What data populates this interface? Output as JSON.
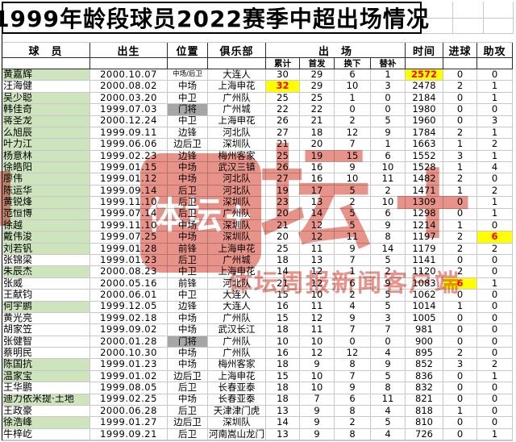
{
  "title": "1999年龄段球员2022赛季中超出场情况",
  "header": {
    "player": "球　员",
    "born": "出生",
    "pos": "位置",
    "club": "俱乐部",
    "appearances": "出　场",
    "time": "时间",
    "goals": "进球",
    "assists": "助攻"
  },
  "subheader": {
    "total": "累计",
    "start": "首发",
    "subbed_off": "换下",
    "sub_on": "替补"
  },
  "colors": {
    "green_row": "#cde4bc",
    "keeper_gray": "#a6a6a6",
    "highlight_yellow": "#ffff00",
    "highlight_red": "#ff0000",
    "watermark_pink": "#e8938a",
    "chip_green": "#45a049"
  },
  "watermark": {
    "icon_text": "体坛+",
    "big_text": "坛+",
    "sub_text": "体坛周报新闻客户端"
  },
  "players": [
    {
      "name": "黄嘉辉",
      "born": "2000.10.07",
      "pos": "中场/后卫",
      "club": "大连人",
      "apps": "30",
      "starts": "29",
      "sub_off": "6",
      "sub_on": "1",
      "minutes": "2572",
      "goals": "0",
      "assists": "0",
      "green": true,
      "keeper": false,
      "hl": "minutes"
    },
    {
      "name": "汪海健",
      "born": "2000.08.02",
      "pos": "中场",
      "club": "上海申花",
      "apps": "32",
      "starts": "29",
      "sub_off": "10",
      "sub_on": "3",
      "minutes": "2478",
      "goals": "2",
      "assists": "1",
      "green": false,
      "keeper": false,
      "hl": "apps"
    },
    {
      "name": "吴少聪",
      "born": "2000.03.20",
      "pos": "中卫",
      "club": "广州队",
      "apps": "25",
      "starts": "25",
      "sub_off": "1",
      "sub_on": "0",
      "minutes": "2184",
      "goals": "0",
      "assists": "1",
      "green": true,
      "keeper": false,
      "hl": null
    },
    {
      "name": "韩佳奇",
      "born": "1999.07.03",
      "pos": "门将",
      "club": "广州城",
      "apps": "22",
      "starts": "22",
      "sub_off": "0",
      "sub_on": "0",
      "minutes": "1980",
      "goals": "0",
      "assists": "0",
      "green": true,
      "keeper": true,
      "hl": null
    },
    {
      "name": "蒋圣龙",
      "born": "2000.12.24",
      "pos": "中卫",
      "club": "上海申花",
      "apps": "26",
      "starts": "21",
      "sub_off": "2",
      "sub_on": "5",
      "minutes": "1960",
      "goals": "0",
      "assists": "3",
      "green": true,
      "keeper": false,
      "hl": null
    },
    {
      "name": "么旭辰",
      "born": "1999.09.11",
      "pos": "边锋",
      "club": "河北队",
      "apps": "27",
      "starts": "18",
      "sub_off": "12",
      "sub_on": "9",
      "minutes": "1784",
      "goals": "2",
      "assists": "1",
      "green": true,
      "keeper": false,
      "hl": null
    },
    {
      "name": "叶力江",
      "born": "1999.06.06",
      "pos": "边后卫",
      "club": "深圳队",
      "apps": "21",
      "starts": "20",
      "sub_off": "7",
      "sub_on": "1",
      "minutes": "1663",
      "goals": "1",
      "assists": "2",
      "green": true,
      "keeper": false,
      "hl": null
    },
    {
      "name": "杨意林",
      "born": "1999.02.23",
      "pos": "边锋",
      "club": "梅州客家",
      "apps": "25",
      "starts": "19",
      "sub_off": "15",
      "sub_on": "6",
      "minutes": "1552",
      "goals": "3",
      "assists": "1",
      "green": true,
      "keeper": false,
      "hl": null
    },
    {
      "name": "徐皓阳",
      "born": "1999.01.15",
      "pos": "中场",
      "club": "武汉三镇",
      "apps": "26",
      "starts": "16",
      "sub_off": "9",
      "sub_on": "10",
      "minutes": "1528",
      "goals": "1",
      "assists": "4",
      "green": true,
      "keeper": false,
      "hl": null
    },
    {
      "name": "廖伟",
      "born": "1999.01.12",
      "pos": "中场",
      "club": "河北队",
      "apps": "27",
      "starts": "16",
      "sub_off": "10",
      "sub_on": "11",
      "minutes": "1482",
      "goals": "2",
      "assists": "0",
      "green": true,
      "keeper": false,
      "hl": null
    },
    {
      "name": "陈运华",
      "born": "1999.09.14",
      "pos": "后卫",
      "club": "河北队",
      "apps": "19",
      "starts": "17",
      "sub_off": "5",
      "sub_on": "2",
      "minutes": "1471",
      "goals": "1",
      "assists": "2",
      "green": true,
      "keeper": false,
      "hl": null
    },
    {
      "name": "黄锐烽",
      "born": "1999.11.10",
      "pos": "后卫",
      "club": "深圳队",
      "apps": "23",
      "starts": "13",
      "sub_off": "2",
      "sub_on": "10",
      "minutes": "1309",
      "goals": "0",
      "assists": "1",
      "green": true,
      "keeper": false,
      "hl": null
    },
    {
      "name": "范恒博",
      "born": "1999.07.14",
      "pos": "后卫",
      "club": "广州队",
      "apps": "20",
      "starts": "14",
      "sub_off": "5",
      "sub_on": "6",
      "minutes": "1298",
      "goals": "0",
      "assists": "1",
      "green": true,
      "keeper": false,
      "hl": null
    },
    {
      "name": "徐越",
      "born": "1999.11.10",
      "pos": "中场",
      "club": "深圳队",
      "apps": "21",
      "starts": "12",
      "sub_off": "5",
      "sub_on": "9",
      "minutes": "1214",
      "goals": "1",
      "assists": "0",
      "green": true,
      "keeper": false,
      "hl": null
    },
    {
      "name": "戴伟浚",
      "born": "1999.07.25",
      "pos": "中场",
      "club": "深圳队",
      "apps": "20",
      "starts": "12",
      "sub_off": "11",
      "sub_on": "8",
      "minutes": "1197",
      "goals": "2",
      "assists": "6",
      "green": true,
      "keeper": false,
      "hl": "assists"
    },
    {
      "name": "刘若钒",
      "born": "1999.01.28",
      "pos": "前锋",
      "club": "上海申花",
      "apps": "25",
      "starts": "11",
      "sub_off": "9",
      "sub_on": "14",
      "minutes": "1179",
      "goals": "2",
      "assists": "2",
      "green": true,
      "keeper": false,
      "hl": null
    },
    {
      "name": "张锦梁",
      "born": "1999.01.23",
      "pos": "后卫",
      "club": "广州城",
      "apps": "18",
      "starts": "13",
      "sub_off": "7",
      "sub_on": "5",
      "minutes": "1141",
      "goals": "0",
      "assists": "0",
      "green": false,
      "keeper": false,
      "hl": null
    },
    {
      "name": "朱辰杰",
      "born": "2000.08.23",
      "pos": "中卫",
      "club": "上海申花",
      "apps": "14",
      "starts": "12",
      "sub_off": "1",
      "sub_on": "2",
      "minutes": "1120",
      "goals": "2",
      "assists": "0",
      "green": true,
      "keeper": false,
      "hl": null
    },
    {
      "name": "张威",
      "born": "2000.05.16",
      "pos": "前锋",
      "club": "河北队",
      "apps": "21",
      "starts": "12",
      "sub_off": "6",
      "sub_on": "9",
      "minutes": "1083",
      "goals": "6",
      "assists": "1",
      "green": false,
      "keeper": false,
      "hl": "goals"
    },
    {
      "name": "王献钧",
      "born": "2000.06.01",
      "pos": "中卫",
      "club": "大连人",
      "apps": "15",
      "starts": "10",
      "sub_off": "2",
      "sub_on": "5",
      "minutes": "1062",
      "goals": "0",
      "assists": "0",
      "green": false,
      "keeper": false,
      "hl": null
    },
    {
      "name": "何宇鹏",
      "born": "1999.12.05",
      "pos": "边锋",
      "club": "大连人",
      "apps": "16",
      "starts": "11",
      "sub_off": "4",
      "sub_on": "5",
      "minutes": "1014",
      "goals": "1",
      "assists": "0",
      "green": true,
      "keeper": false,
      "hl": null
    },
    {
      "name": "黄光亮",
      "born": "1999.02.18",
      "pos": "中场",
      "club": "广州队",
      "apps": "15",
      "starts": "12",
      "sub_off": "9",
      "sub_on": "3",
      "minutes": "1005",
      "goals": "0",
      "assists": "0",
      "green": false,
      "keeper": false,
      "hl": null
    },
    {
      "name": "胡家笠",
      "born": "1999.09.02",
      "pos": "中场",
      "club": "武汉长江",
      "apps": "18",
      "starts": "11",
      "sub_off": "7",
      "sub_on": "7",
      "minutes": "981",
      "goals": "0",
      "assists": "0",
      "green": false,
      "keeper": false,
      "hl": null
    },
    {
      "name": "张健智",
      "born": "2000.01.28",
      "pos": "门将",
      "club": "广州队",
      "apps": "10",
      "starts": "10",
      "sub_off": "0",
      "sub_on": "0",
      "minutes": "900",
      "goals": "0",
      "assists": "0",
      "green": false,
      "keeper": true,
      "hl": null
    },
    {
      "name": "蔡明民",
      "born": "2000.10.30",
      "pos": "中场",
      "club": "广州队",
      "apps": "16",
      "starts": "12",
      "sub_off": "12",
      "sub_on": "4",
      "minutes": "895",
      "goals": "2",
      "assists": "0",
      "green": false,
      "keeper": false,
      "hl": null
    },
    {
      "name": "陈国抗",
      "born": "1999.01.23",
      "pos": "中场",
      "club": "梅州客家",
      "apps": "18",
      "starts": "9",
      "sub_off": "8",
      "sub_on": "9",
      "minutes": "852",
      "goals": "3",
      "assists": "2",
      "green": true,
      "keeper": false,
      "hl": null
    },
    {
      "name": "温家宝",
      "born": "1999.01.02",
      "pos": "边后卫",
      "club": "上海申花",
      "apps": "15",
      "starts": "10",
      "sub_off": "7",
      "sub_on": "5",
      "minutes": "836",
      "goals": "0",
      "assists": "1",
      "green": true,
      "keeper": false,
      "hl": null
    },
    {
      "name": "王华鹏",
      "born": "1999.08.05",
      "pos": "后卫",
      "club": "长春亚泰",
      "apps": "18",
      "starts": "10",
      "sub_off": "9",
      "sub_on": "8",
      "minutes": "832",
      "goals": "0",
      "assists": "0",
      "green": false,
      "keeper": false,
      "hl": null
    },
    {
      "name": "迪力依米提·土地",
      "born": "1999.02.25",
      "pos": "中场",
      "club": "长春亚泰",
      "apps": "18",
      "starts": "7",
      "sub_off": "6",
      "sub_on": "11",
      "minutes": "821",
      "goals": "0",
      "assists": "0",
      "green": true,
      "keeper": false,
      "hl": null
    },
    {
      "name": "王政豪",
      "born": "2000.06.28",
      "pos": "后卫",
      "club": "天津津门虎",
      "apps": "13",
      "starts": "9",
      "sub_off": "8",
      "sub_on": "4",
      "minutes": "818",
      "goals": "1",
      "assists": "0",
      "green": false,
      "keeper": false,
      "hl": null
    },
    {
      "name": "徐浩峰",
      "born": "1999.01.27",
      "pos": "边后卫",
      "club": "深圳队",
      "apps": "14",
      "starts": "9",
      "sub_off": "2",
      "sub_on": "5",
      "minutes": "810",
      "goals": "0",
      "assists": "0",
      "green": true,
      "keeper": false,
      "hl": null
    },
    {
      "name": "牛梓屹",
      "born": "1999.09.21",
      "pos": "后卫",
      "club": "河南嵩山龙门",
      "apps": "13",
      "starts": "9",
      "sub_off": "8",
      "sub_on": "4",
      "minutes": "726",
      "goals": "0",
      "assists": "1",
      "green": false,
      "keeper": false,
      "hl": null
    }
  ]
}
